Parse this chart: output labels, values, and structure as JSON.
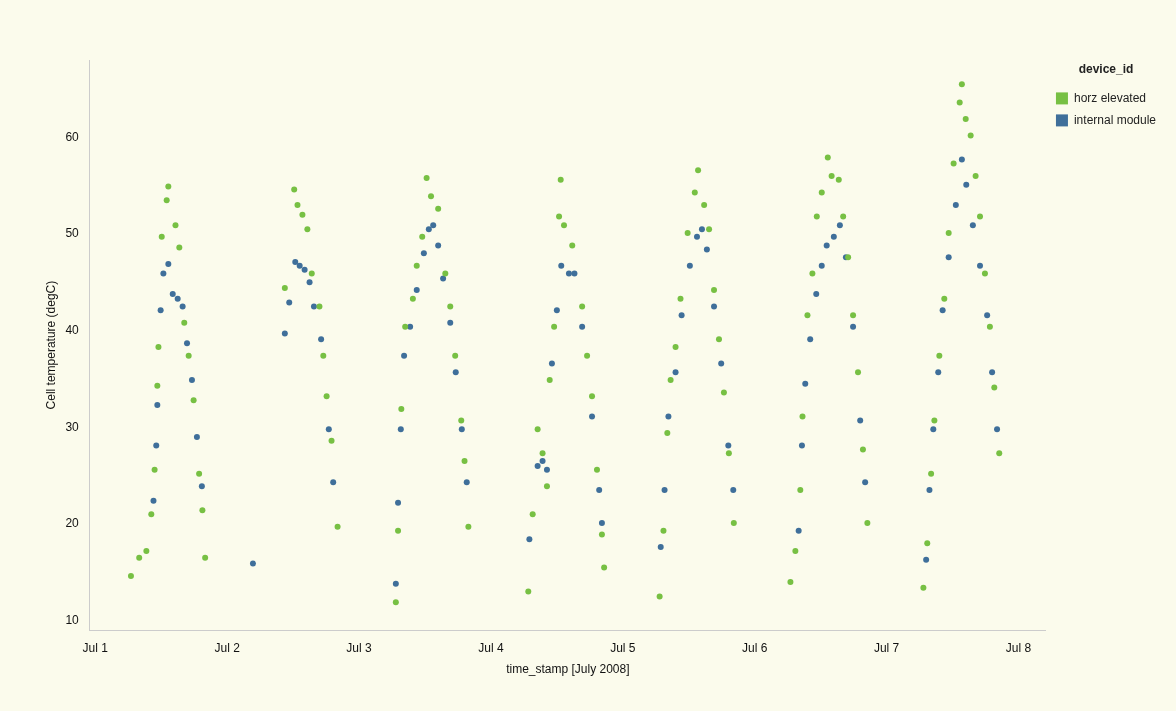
{
  "chart_data": {
    "type": "scatter",
    "xlabel": "time_stamp [July 2008]",
    "ylabel": "Cell temperature (degC)",
    "legend_title": "device_id",
    "legend": "top right",
    "grid": false,
    "marker": "circle",
    "xlim": [
      "2008-06-30T23:00",
      "2008-07-08T05:00"
    ],
    "ylim": [
      9,
      68
    ],
    "xticks": [
      {
        "value": "2008-07-01",
        "label": "Jul 1"
      },
      {
        "value": "2008-07-02",
        "label": "Jul 2"
      },
      {
        "value": "2008-07-03",
        "label": "Jul 3"
      },
      {
        "value": "2008-07-04",
        "label": "Jul 4"
      },
      {
        "value": "2008-07-05",
        "label": "Jul 5"
      },
      {
        "value": "2008-07-06",
        "label": "Jul 6"
      },
      {
        "value": "2008-07-07",
        "label": "Jul 7"
      },
      {
        "value": "2008-07-08",
        "label": "Jul 8"
      }
    ],
    "yticks": [
      10,
      20,
      30,
      40,
      50,
      60
    ],
    "series": [
      {
        "name": "horz elevated",
        "color": "#77c043",
        "x": [
          "2008-07-01T06:30",
          "2008-07-01T08:00",
          "2008-07-01T09:18",
          "2008-07-01T10:12",
          "2008-07-01T10:48",
          "2008-07-01T11:18",
          "2008-07-01T11:30",
          "2008-07-01T12:06",
          "2008-07-01T13:00",
          "2008-07-01T13:18",
          "2008-07-01T14:36",
          "2008-07-01T15:18",
          "2008-07-01T16:12",
          "2008-07-01T17:00",
          "2008-07-01T17:54",
          "2008-07-01T18:54",
          "2008-07-01T19:30",
          "2008-07-01T20:00",
          "2008-07-02T10:30",
          "2008-07-02T12:12",
          "2008-07-02T12:48",
          "2008-07-02T13:42",
          "2008-07-02T14:36",
          "2008-07-02T15:24",
          "2008-07-02T16:48",
          "2008-07-02T17:30",
          "2008-07-02T18:06",
          "2008-07-02T19:00",
          "2008-07-02T20:06",
          "2008-07-03T06:42",
          "2008-07-03T07:06",
          "2008-07-03T07:42",
          "2008-07-03T08:24",
          "2008-07-03T09:48",
          "2008-07-03T10:30",
          "2008-07-03T11:30",
          "2008-07-03T12:18",
          "2008-07-03T13:06",
          "2008-07-03T14:24",
          "2008-07-03T15:42",
          "2008-07-03T16:36",
          "2008-07-03T17:30",
          "2008-07-03T18:36",
          "2008-07-03T19:12",
          "2008-07-03T19:54",
          "2008-07-04T06:48",
          "2008-07-04T07:36",
          "2008-07-04T08:30",
          "2008-07-04T09:24",
          "2008-07-04T10:12",
          "2008-07-04T10:42",
          "2008-07-04T11:30",
          "2008-07-04T12:24",
          "2008-07-04T12:42",
          "2008-07-04T13:18",
          "2008-07-04T14:48",
          "2008-07-04T16:36",
          "2008-07-04T17:30",
          "2008-07-04T18:24",
          "2008-07-04T19:18",
          "2008-07-04T20:12",
          "2008-07-04T20:36",
          "2008-07-05T06:42",
          "2008-07-05T07:24",
          "2008-07-05T08:06",
          "2008-07-05T08:42",
          "2008-07-05T09:36",
          "2008-07-05T10:30",
          "2008-07-05T11:48",
          "2008-07-05T13:06",
          "2008-07-05T13:42",
          "2008-07-05T14:48",
          "2008-07-05T15:42",
          "2008-07-05T16:36",
          "2008-07-05T17:30",
          "2008-07-05T18:24",
          "2008-07-05T19:18",
          "2008-07-05T20:12",
          "2008-07-06T06:30",
          "2008-07-06T07:24",
          "2008-07-06T08:18",
          "2008-07-06T08:42",
          "2008-07-06T09:36",
          "2008-07-06T10:30",
          "2008-07-06T11:18",
          "2008-07-06T12:12",
          "2008-07-06T13:18",
          "2008-07-06T14:00",
          "2008-07-06T15:18",
          "2008-07-06T16:06",
          "2008-07-06T17:00",
          "2008-07-06T17:54",
          "2008-07-06T18:48",
          "2008-07-06T19:42",
          "2008-07-06T20:30",
          "2008-07-07T06:42",
          "2008-07-07T07:24",
          "2008-07-07T08:06",
          "2008-07-07T08:42",
          "2008-07-07T09:36",
          "2008-07-07T10:30",
          "2008-07-07T11:18",
          "2008-07-07T12:12",
          "2008-07-07T13:18",
          "2008-07-07T13:42",
          "2008-07-07T14:24",
          "2008-07-07T15:18",
          "2008-07-07T16:12",
          "2008-07-07T17:00",
          "2008-07-07T17:54",
          "2008-07-07T18:48",
          "2008-07-07T19:36",
          "2008-07-07T20:30"
        ],
        "values": [
          14.6,
          16.5,
          17.2,
          21,
          25.6,
          34.3,
          38.3,
          49.7,
          53.5,
          54.9,
          50.9,
          48.6,
          40.8,
          37.4,
          32.8,
          25.2,
          21.4,
          16.5,
          44.4,
          54.6,
          53,
          52,
          50.5,
          45.9,
          42.5,
          37.4,
          33.2,
          28.6,
          19.7,
          11.9,
          19.3,
          31.9,
          40.4,
          43.3,
          46.7,
          49.7,
          55.8,
          53.9,
          52.6,
          45.9,
          42.5,
          37.4,
          30.7,
          26.5,
          19.7,
          13,
          21,
          29.8,
          27.3,
          23.9,
          34.9,
          40.4,
          51.8,
          55.6,
          50.9,
          48.8,
          42.5,
          37.4,
          33.2,
          25.6,
          18.9,
          15.5,
          12.5,
          19.3,
          29.4,
          34.9,
          38.3,
          43.3,
          50.1,
          54.3,
          56.6,
          53,
          50.5,
          44.2,
          39.1,
          33.6,
          27.3,
          20.1,
          14,
          17.2,
          23.5,
          31.1,
          41.6,
          45.9,
          51.8,
          54.3,
          57.9,
          56,
          55.6,
          51.8,
          47.6,
          41.6,
          35.7,
          27.7,
          20.1,
          13.4,
          18,
          25.2,
          30.7,
          37.4,
          43.3,
          50.1,
          57.3,
          63.6,
          65.5,
          61.9,
          60.2,
          56,
          51.8,
          45.9,
          40.4,
          34.1,
          27.3
        ]
      },
      {
        "name": "internal module",
        "color": "#3f6f9a",
        "x": [
          "2008-07-01T10:36",
          "2008-07-01T11:06",
          "2008-07-01T11:18",
          "2008-07-01T11:54",
          "2008-07-01T12:24",
          "2008-07-01T13:18",
          "2008-07-01T14:06",
          "2008-07-01T15:00",
          "2008-07-01T15:54",
          "2008-07-01T16:42",
          "2008-07-01T17:36",
          "2008-07-01T18:30",
          "2008-07-01T19:24",
          "2008-07-02T04:42",
          "2008-07-02T10:30",
          "2008-07-02T11:18",
          "2008-07-02T12:24",
          "2008-07-02T13:12",
          "2008-07-02T14:06",
          "2008-07-02T15:00",
          "2008-07-02T15:48",
          "2008-07-02T17:06",
          "2008-07-02T18:30",
          "2008-07-02T19:18",
          "2008-07-03T06:42",
          "2008-07-03T07:06",
          "2008-07-03T07:36",
          "2008-07-03T08:12",
          "2008-07-03T09:18",
          "2008-07-03T10:30",
          "2008-07-03T11:48",
          "2008-07-03T12:42",
          "2008-07-03T13:30",
          "2008-07-03T14:24",
          "2008-07-03T15:18",
          "2008-07-03T16:36",
          "2008-07-03T17:36",
          "2008-07-03T18:42",
          "2008-07-03T19:36",
          "2008-07-04T07:00",
          "2008-07-04T08:30",
          "2008-07-04T09:24",
          "2008-07-04T10:12",
          "2008-07-04T11:06",
          "2008-07-04T12:00",
          "2008-07-04T12:48",
          "2008-07-04T14:12",
          "2008-07-04T15:12",
          "2008-07-04T16:36",
          "2008-07-04T18:24",
          "2008-07-04T19:42",
          "2008-07-04T20:12",
          "2008-07-05T06:54",
          "2008-07-05T07:36",
          "2008-07-05T08:18",
          "2008-07-05T09:36",
          "2008-07-05T10:42",
          "2008-07-05T12:12",
          "2008-07-05T13:30",
          "2008-07-05T14:24",
          "2008-07-05T15:18",
          "2008-07-05T16:36",
          "2008-07-05T17:54",
          "2008-07-05T19:12",
          "2008-07-05T20:06",
          "2008-07-06T08:00",
          "2008-07-06T08:36",
          "2008-07-06T09:12",
          "2008-07-06T10:06",
          "2008-07-06T11:12",
          "2008-07-06T12:12",
          "2008-07-06T13:06",
          "2008-07-06T14:24",
          "2008-07-06T15:30",
          "2008-07-06T16:36",
          "2008-07-06T17:54",
          "2008-07-06T19:12",
          "2008-07-06T20:06",
          "2008-07-07T07:12",
          "2008-07-07T07:48",
          "2008-07-07T08:30",
          "2008-07-07T09:24",
          "2008-07-07T10:12",
          "2008-07-07T11:18",
          "2008-07-07T12:36",
          "2008-07-07T13:42",
          "2008-07-07T14:30",
          "2008-07-07T15:42",
          "2008-07-07T17:00",
          "2008-07-07T18:18",
          "2008-07-07T19:12",
          "2008-07-07T20:06"
        ],
        "values": [
          22.4,
          28.1,
          32.3,
          42.1,
          45.9,
          46.9,
          43.8,
          43.3,
          42.5,
          38.7,
          34.9,
          29,
          23.9,
          15.9,
          39.7,
          42.9,
          47.1,
          46.7,
          46.3,
          45,
          42.5,
          39.1,
          29.8,
          24.3,
          13.8,
          22.2,
          29.8,
          37.4,
          40.4,
          44.2,
          48,
          50.5,
          50.9,
          48.8,
          45.4,
          40.8,
          35.7,
          29.8,
          24.3,
          18.4,
          26,
          26.5,
          25.6,
          36.6,
          42.1,
          46.7,
          45.9,
          45.9,
          40.4,
          31.1,
          23.5,
          20.1,
          17.6,
          23.5,
          31.1,
          35.7,
          41.6,
          46.7,
          49.7,
          50.5,
          48.4,
          42.5,
          36.6,
          28.1,
          23.5,
          19.3,
          28.1,
          34.5,
          39.1,
          43.8,
          46.7,
          48.8,
          49.7,
          50.9,
          47.6,
          40.4,
          30.7,
          24.3,
          16.3,
          23.5,
          29.8,
          35.7,
          42.1,
          47.6,
          53,
          57.7,
          55.1,
          50.9,
          46.7,
          41.6,
          35.7,
          29.8
        ]
      }
    ]
  }
}
